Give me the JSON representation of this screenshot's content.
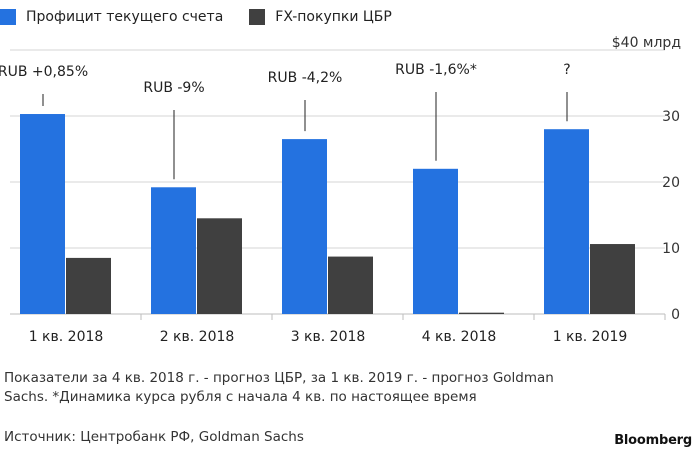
{
  "legend": [
    {
      "label": "Профицит текущего счета",
      "color": "#2472E0"
    },
    {
      "label": "FX-покупки ЦБР",
      "color": "#404040"
    }
  ],
  "chart_data": {
    "type": "bar",
    "categories": [
      "1 кв. 2018",
      "2 кв. 2018",
      "3 кв. 2018",
      "4 кв. 2018",
      "1 кв. 2019"
    ],
    "series": [
      {
        "name": "Профицит текущего счета",
        "values": [
          30.3,
          19.2,
          26.5,
          22.0,
          28.0
        ],
        "color": "#2472E0"
      },
      {
        "name": "FX-покупки ЦБР",
        "values": [
          8.5,
          14.5,
          8.7,
          0.2,
          10.6
        ],
        "color": "#404040"
      }
    ],
    "annotations": [
      "RUB +0,85%",
      "RUB -9%",
      "RUB -4,2%",
      "RUB -1,6%*",
      "?"
    ],
    "ylim": [
      0,
      40
    ],
    "yticks": [
      "0",
      "10",
      "20",
      "30",
      "$40 млрд"
    ],
    "ytick_values": [
      0,
      10,
      20,
      30,
      40
    ],
    "grid": true,
    "axis_position": "right"
  },
  "footnote": "Показатели за 4 кв. 2018 г. - прогноз ЦБР, за 1 кв. 2019 г. - прогноз Goldman Sachs. *Динамика курса рубля с начала 4 кв. по настоящее время",
  "source": "Источник: Центробанк РФ, Goldman Sachs",
  "brand": "Bloomberg"
}
